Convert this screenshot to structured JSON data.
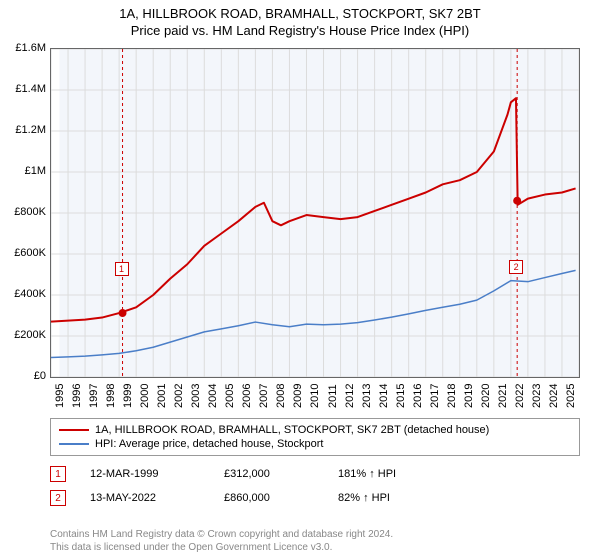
{
  "title_main": "1A, HILLBROOK ROAD, BRAMHALL, STOCKPORT, SK7 2BT",
  "title_sub": "Price paid vs. HM Land Registry's House Price Index (HPI)",
  "chart": {
    "type": "line",
    "background_color": "#ffffff",
    "plot_bg_color": "#f3f6fb",
    "grid_color": "#dcdcdc",
    "border_color": "#666666",
    "xlim": [
      1995,
      2026
    ],
    "ylim": [
      0,
      1600000
    ],
    "ytick_step": 200000,
    "ytick_labels": [
      "£0",
      "£200K",
      "£400K",
      "£600K",
      "£800K",
      "£1M",
      "£1.2M",
      "£1.4M",
      "£1.6M"
    ],
    "xtick_step": 1,
    "xtick_labels": [
      "1995",
      "1996",
      "1997",
      "1998",
      "1999",
      "2000",
      "2001",
      "2002",
      "2003",
      "2004",
      "2005",
      "2006",
      "2007",
      "2008",
      "2009",
      "2010",
      "2011",
      "2012",
      "2013",
      "2014",
      "2015",
      "2016",
      "2017",
      "2018",
      "2019",
      "2020",
      "2021",
      "2022",
      "2023",
      "2024",
      "2025"
    ],
    "label_fontsize": 11,
    "series": [
      {
        "name": "property",
        "label": "1A, HILLBROOK ROAD, BRAMHALL, STOCKPORT, SK7 2BT (detached house)",
        "color": "#cc0000",
        "line_width": 2,
        "x": [
          1995,
          1996,
          1997,
          1998,
          1999,
          2000,
          2001,
          2002,
          2003,
          2004,
          2005,
          2006,
          2007,
          2007.5,
          2008,
          2008.5,
          2009,
          2010,
          2011,
          2012,
          2013,
          2014,
          2015,
          2016,
          2017,
          2018,
          2019,
          2020,
          2021,
          2021.8,
          2022,
          2022.3,
          2022.4,
          2023,
          2024,
          2025,
          2025.8
        ],
        "y": [
          270000,
          275000,
          280000,
          290000,
          312000,
          340000,
          400000,
          480000,
          550000,
          640000,
          700000,
          760000,
          830000,
          850000,
          760000,
          740000,
          760000,
          790000,
          780000,
          770000,
          780000,
          810000,
          840000,
          870000,
          900000,
          940000,
          960000,
          1000000,
          1100000,
          1280000,
          1340000,
          1360000,
          840000,
          870000,
          890000,
          900000,
          920000
        ]
      },
      {
        "name": "hpi",
        "label": "HPI: Average price, detached house, Stockport",
        "color": "#4a7ec8",
        "line_width": 1.5,
        "x": [
          1995,
          1996,
          1997,
          1998,
          1999,
          2000,
          2001,
          2002,
          2003,
          2004,
          2005,
          2006,
          2007,
          2008,
          2009,
          2010,
          2011,
          2012,
          2013,
          2014,
          2015,
          2016,
          2017,
          2018,
          2019,
          2020,
          2021,
          2022,
          2023,
          2024,
          2025,
          2025.8
        ],
        "y": [
          95000,
          98000,
          102000,
          108000,
          115000,
          128000,
          145000,
          170000,
          195000,
          220000,
          235000,
          250000,
          268000,
          255000,
          245000,
          258000,
          255000,
          258000,
          265000,
          278000,
          292000,
          308000,
          325000,
          340000,
          355000,
          375000,
          420000,
          470000,
          465000,
          485000,
          505000,
          520000
        ]
      }
    ],
    "markers": [
      {
        "label": "1",
        "x": 1999.2,
        "line_x": 1999.2,
        "point_y": 312000,
        "box_y_offset": -50
      },
      {
        "label": "2",
        "x": 2022.37,
        "line_x": 2022.37,
        "point_y": 860000,
        "box_y_offset": 60
      }
    ],
    "marker_line_color": "#cc0000",
    "marker_dot_color": "#cc0000"
  },
  "legend": {
    "border_color": "#999999",
    "items": [
      {
        "color": "#cc0000",
        "width": 2,
        "label": "1A, HILLBROOK ROAD, BRAMHALL, STOCKPORT, SK7 2BT (detached house)"
      },
      {
        "color": "#4a7ec8",
        "width": 1.5,
        "label": "HPI: Average price, detached house, Stockport"
      }
    ]
  },
  "sales": [
    {
      "marker": "1",
      "date": "12-MAR-1999",
      "price": "£312,000",
      "hpi": "181% ↑ HPI"
    },
    {
      "marker": "2",
      "date": "13-MAY-2022",
      "price": "£860,000",
      "hpi": "82% ↑ HPI"
    }
  ],
  "footer_line1": "Contains HM Land Registry data © Crown copyright and database right 2024.",
  "footer_line2": "This data is licensed under the Open Government Licence v3.0."
}
